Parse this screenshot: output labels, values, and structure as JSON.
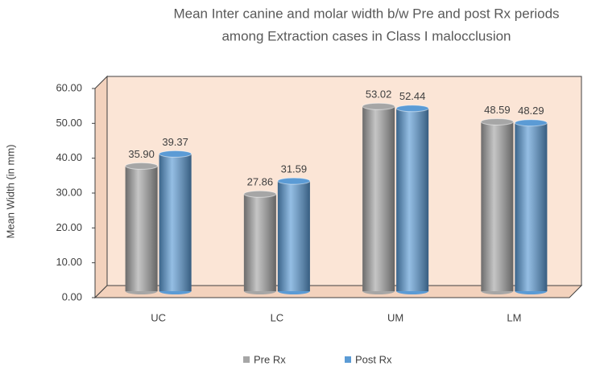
{
  "chart_data": {
    "type": "bar",
    "title": [
      "Mean Inter canine and molar width b/w Pre and post Rx periods",
      "among Extraction cases in Class I malocclusion"
    ],
    "y_label": "Mean Width (in mm)",
    "categories": [
      "UC",
      "LC",
      "UM",
      "LM"
    ],
    "series": [
      {
        "name": "Pre Rx",
        "color": "#a6a6a6",
        "values": [
          35.9,
          27.86,
          53.02,
          48.59
        ],
        "value_labels": [
          "35.90",
          "27.86",
          "53.02",
          "48.59"
        ]
      },
      {
        "name": "Post Rx",
        "color": "#5b9bd5",
        "values": [
          39.37,
          31.59,
          52.44,
          48.29
        ],
        "value_labels": [
          "39.37",
          "31.59",
          "52.44",
          "48.29"
        ]
      }
    ],
    "ylim": [
      0,
      60
    ],
    "yticks": [
      {
        "value": 0,
        "label": "0.00"
      },
      {
        "value": 10,
        "label": "10.00"
      },
      {
        "value": 20,
        "label": "20.00"
      },
      {
        "value": 30,
        "label": "30.00"
      },
      {
        "value": 40,
        "label": "40.00"
      },
      {
        "value": 50,
        "label": "50.00"
      },
      {
        "value": 60,
        "label": "60.00"
      }
    ],
    "legend": "bottom"
  }
}
